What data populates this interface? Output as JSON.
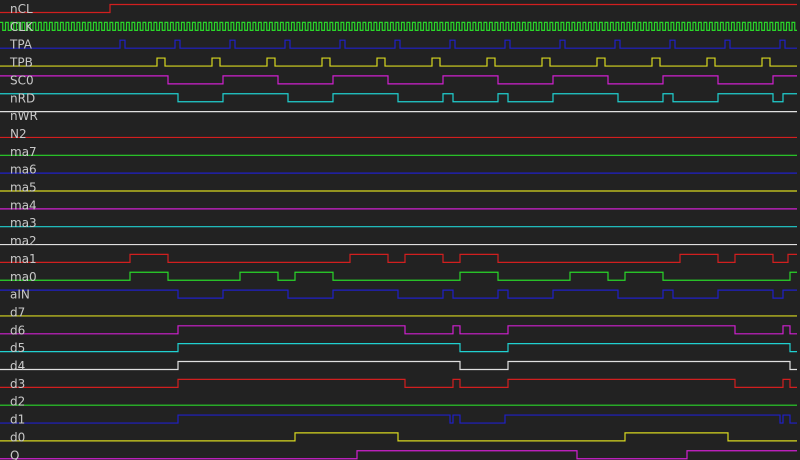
{
  "signals": [
    {
      "name": "nCL",
      "color": "#d21f1f",
      "trans": [
        110
      ],
      "init": 0
    },
    {
      "name": "CLK",
      "color": "#2ad62a",
      "clock": true
    },
    {
      "name": "TPA",
      "color": "#2020c8",
      "trans": [
        120,
        125,
        175,
        180,
        230,
        235,
        285,
        290,
        340,
        345,
        395,
        400,
        450,
        455,
        505,
        510,
        560,
        565,
        615,
        620,
        670,
        675,
        725,
        730,
        780,
        785
      ],
      "init": 0
    },
    {
      "name": "TPB",
      "color": "#d8d820",
      "trans": [
        157,
        165,
        212,
        220,
        267,
        275,
        322,
        330,
        377,
        385,
        432,
        440,
        487,
        495,
        542,
        550,
        597,
        605,
        652,
        660,
        707,
        715,
        762,
        770
      ],
      "init": 0
    },
    {
      "name": "SC0",
      "color": "#d020d0",
      "trans": [
        168,
        223,
        278,
        333,
        388,
        443,
        498,
        553,
        608,
        663,
        718,
        773
      ],
      "init": 1
    },
    {
      "name": "nRD",
      "color": "#20d0d0",
      "trans": [
        178,
        223,
        288,
        333,
        398,
        443,
        453,
        498,
        508,
        553,
        618,
        663,
        673,
        718,
        773,
        783
      ],
      "init": 1
    },
    {
      "name": "nWR",
      "color": "#e0e0e0",
      "trans": [],
      "init": 1
    },
    {
      "name": "N2",
      "color": "#d21f1f",
      "trans": [],
      "init": 0
    },
    {
      "name": "ma7",
      "color": "#2ad62a",
      "trans": [],
      "init": 0
    },
    {
      "name": "ma6",
      "color": "#2020c8",
      "trans": [],
      "init": 0
    },
    {
      "name": "ma5",
      "color": "#d8d820",
      "trans": [],
      "init": 0
    },
    {
      "name": "ma4",
      "color": "#d020d0",
      "trans": [],
      "init": 0
    },
    {
      "name": "ma3",
      "color": "#20d0d0",
      "trans": [],
      "init": 0
    },
    {
      "name": "ma2",
      "color": "#e0e0e0",
      "trans": [],
      "init": 0
    },
    {
      "name": "ma1",
      "color": "#d21f1f",
      "trans": [
        130,
        168,
        350,
        388,
        405,
        443,
        460,
        498,
        680,
        718,
        735,
        773,
        788
      ],
      "init": 0
    },
    {
      "name": "ma0",
      "color": "#2ad62a",
      "trans": [
        130,
        168,
        240,
        278,
        295,
        333,
        460,
        498,
        570,
        608,
        625,
        663,
        790
      ],
      "init": 0
    },
    {
      "name": "aIN",
      "color": "#2020c8",
      "trans": [
        178,
        223,
        288,
        333,
        398,
        443,
        453,
        498,
        508,
        553,
        618,
        663,
        673,
        718,
        773,
        783
      ],
      "init": 1
    },
    {
      "name": "d7",
      "color": "#d8d820",
      "trans": [],
      "init": 0
    },
    {
      "name": "d6",
      "color": "#d020d0",
      "trans": [
        178,
        405,
        453,
        460,
        508,
        735,
        783,
        790
      ],
      "init": 0
    },
    {
      "name": "d5",
      "color": "#20d0d0",
      "trans": [
        178,
        460,
        508,
        790
      ],
      "init": 0
    },
    {
      "name": "d4",
      "color": "#e0e0e0",
      "trans": [
        178,
        460,
        508,
        790
      ],
      "init": 0
    },
    {
      "name": "d3",
      "color": "#d21f1f",
      "trans": [
        178,
        405,
        453,
        460,
        508,
        735,
        783,
        790
      ],
      "init": 0
    },
    {
      "name": "d2",
      "color": "#2ad62a",
      "trans": [],
      "init": 0
    },
    {
      "name": "d1",
      "color": "#2020c8",
      "trans": [
        178,
        450,
        453,
        460,
        505,
        780,
        783,
        790
      ],
      "init": 0
    },
    {
      "name": "d0",
      "color": "#d8d820",
      "trans": [
        295,
        398,
        625,
        728
      ],
      "init": 0
    },
    {
      "name": "Q",
      "color": "#d020d0",
      "trans": [
        357,
        577,
        687
      ],
      "init": 0
    }
  ]
}
